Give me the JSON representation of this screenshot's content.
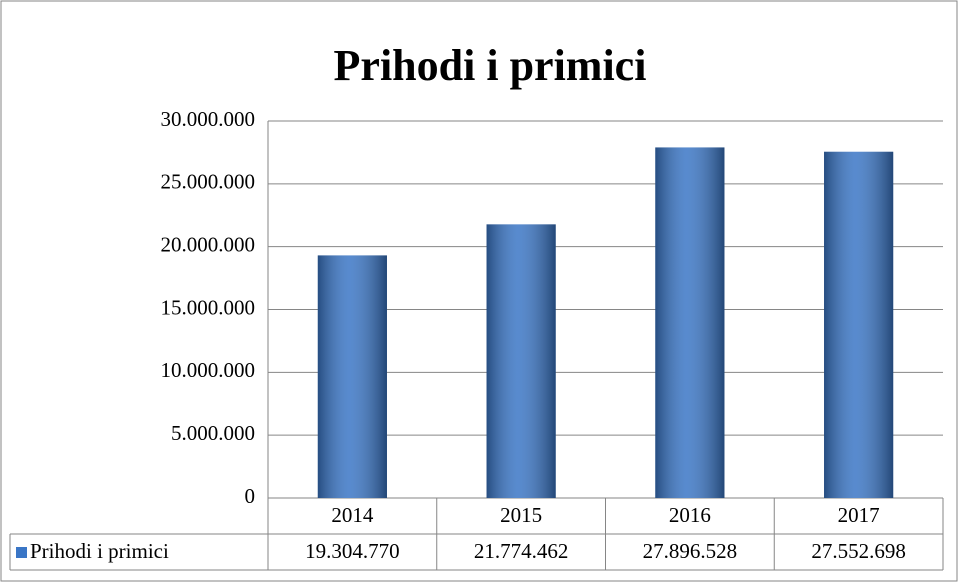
{
  "chart_data": {
    "type": "bar",
    "title": "Prihodi i primici",
    "categories": [
      "2014",
      "2015",
      "2016",
      "2017"
    ],
    "series": [
      {
        "name": "Prihodi i primici",
        "color": "#3a76c6",
        "values": [
          19304770,
          21774462,
          27896528,
          27552698
        ],
        "value_labels": [
          "19.304.770",
          "21.774.462",
          "27.896.528",
          "27.552.698"
        ]
      }
    ],
    "ylim": [
      0,
      30000000
    ],
    "yticks": [
      0,
      {
        "value": 5000000,
        "label": "5.000.000"
      },
      {
        "value": 10000000,
        "label": "10.000.000"
      },
      {
        "value": 15000000,
        "label": "15.000.000"
      },
      {
        "value": 20000000,
        "label": "20.000.000"
      },
      {
        "value": 25000000,
        "label": "25.000.000"
      },
      {
        "value": 30000000,
        "label": "30.000.000"
      }
    ],
    "grid": true
  }
}
